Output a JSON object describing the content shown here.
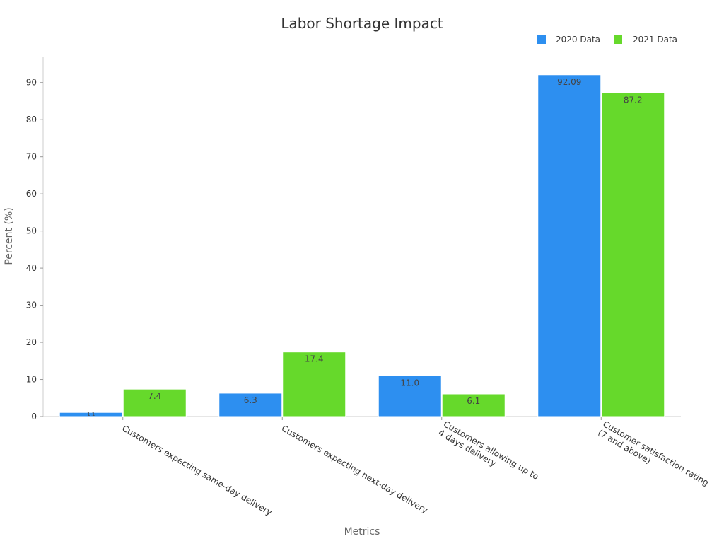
{
  "chart_data": {
    "type": "bar",
    "title": "Labor Shortage Impact",
    "xlabel": "Metrics",
    "ylabel": "Percent (%)",
    "categories": [
      "Customers expecting same-day delivery",
      "Customers expecting next-day delivery",
      "Customers allowing up to 4 days delivery",
      "Customer satisfaction rating (7 and above)"
    ],
    "category_display_lines": [
      [
        "Customers expecting same-day delivery"
      ],
      [
        "Customers expecting next-day delivery"
      ],
      [
        "Customers allowing up to",
        "4 days delivery"
      ],
      [
        "Customer satisfaction rating",
        "(7 and above)"
      ]
    ],
    "series": [
      {
        "name": "2020 Data",
        "color": "#2d8ff0",
        "values": [
          1.1,
          6.3,
          11.0,
          92.09
        ]
      },
      {
        "name": "2021 Data",
        "color": "#66d92b",
        "values": [
          7.4,
          17.4,
          6.1,
          87.2
        ]
      }
    ],
    "data_labels": [
      [
        "1.1",
        "6.3",
        "11.0",
        "92.09"
      ],
      [
        "7.4",
        "17.4",
        "6.1",
        "87.2"
      ]
    ],
    "ylim": [
      0,
      97
    ],
    "yticks": [
      0,
      10,
      20,
      30,
      40,
      50,
      60,
      70,
      80,
      90
    ],
    "grid": false,
    "legend_position": "top-right"
  }
}
